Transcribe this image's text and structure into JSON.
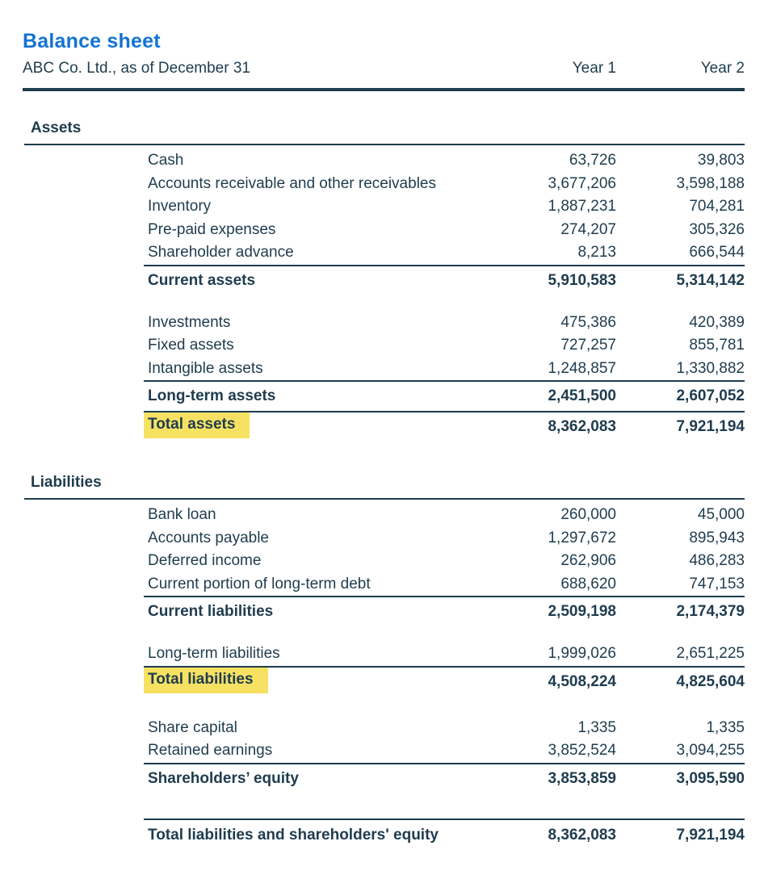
{
  "page": {
    "title": "Balance sheet",
    "subtitle": "ABC Co. Ltd., as of December 31",
    "columns": [
      "Year 1",
      "Year 2"
    ]
  },
  "colors": {
    "accent_blue": "#1273d3",
    "text_navy": "#1e3c4e",
    "highlight_yellow": "#f6e163"
  },
  "sections": [
    {
      "heading": "Assets",
      "rows": [
        {
          "type": "item",
          "label": "Cash",
          "year1": "63,726",
          "year2": "39,803"
        },
        {
          "type": "item",
          "label": "Accounts receivable and other receivables",
          "year1": "3,677,206",
          "year2": "3,598,188"
        },
        {
          "type": "item",
          "label": "Inventory",
          "year1": "1,887,231",
          "year2": "704,281"
        },
        {
          "type": "item",
          "label": "Pre-paid expenses",
          "year1": "274,207",
          "year2": "305,326"
        },
        {
          "type": "item",
          "label": "Shareholder advance",
          "year1": "8,213",
          "year2": "666,544"
        },
        {
          "type": "subtotal",
          "label": "Current assets",
          "year1": "5,910,583",
          "year2": "5,314,142"
        },
        {
          "type": "gap"
        },
        {
          "type": "item",
          "label": "Investments",
          "year1": "475,386",
          "year2": "420,389"
        },
        {
          "type": "item",
          "label": "Fixed assets",
          "year1": "727,257",
          "year2": "855,781"
        },
        {
          "type": "item",
          "label": "Intangible assets",
          "year1": "1,248,857",
          "year2": "1,330,882"
        },
        {
          "type": "subtotal",
          "label": "Long-term assets",
          "year1": "2,451,500",
          "year2": "2,607,052"
        },
        {
          "type": "total",
          "label": "Total assets",
          "year1": "8,362,083",
          "year2": "7,921,194"
        }
      ]
    },
    {
      "heading": "Liabilities",
      "rows": [
        {
          "type": "item",
          "label": "Bank loan",
          "year1": "260,000",
          "year2": "45,000"
        },
        {
          "type": "item",
          "label": "Accounts payable",
          "year1": "1,297,672",
          "year2": "895,943"
        },
        {
          "type": "item",
          "label": "Deferred income",
          "year1": "262,906",
          "year2": "486,283"
        },
        {
          "type": "item",
          "label": "Current portion of long-term debt",
          "year1": "688,620",
          "year2": "747,153"
        },
        {
          "type": "subtotal",
          "label": "Current liabilities",
          "year1": "2,509,198",
          "year2": "2,174,379"
        },
        {
          "type": "gap"
        },
        {
          "type": "item",
          "label": "Long-term liabilities",
          "year1": "1,999,026",
          "year2": "2,651,225"
        },
        {
          "type": "total",
          "label": "Total liabilities",
          "year1": "4,508,224",
          "year2": "4,825,604"
        },
        {
          "type": "gap"
        },
        {
          "type": "item",
          "label": "Share capital",
          "year1": "1,335",
          "year2": "1,335"
        },
        {
          "type": "item",
          "label": "Retained earnings",
          "year1": "3,852,524",
          "year2": "3,094,255"
        },
        {
          "type": "subtotal",
          "label": "Shareholders’ equity",
          "year1": "3,853,859",
          "year2": "3,095,590"
        },
        {
          "type": "grand",
          "label": "Total liabilities and shareholders' equity",
          "year1": "8,362,083",
          "year2": "7,921,194"
        }
      ]
    }
  ]
}
